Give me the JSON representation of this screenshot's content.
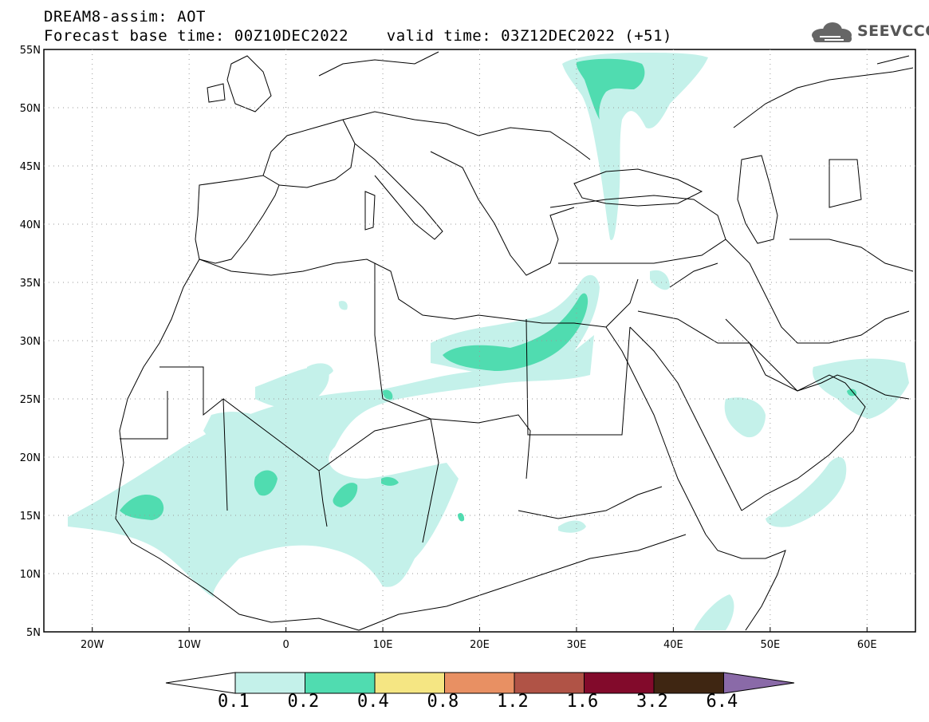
{
  "header": {
    "title_line1": "DREAM8-assim: AOT",
    "title_line2": "Forecast base time: 00Z10DEC2022    valid time: 03Z12DEC2022 (+51)",
    "logo_text": "SEEVCCC"
  },
  "map": {
    "lat_labels": [
      "55N",
      "50N",
      "45N",
      "40N",
      "35N",
      "30N",
      "25N",
      "20N",
      "15N",
      "10N",
      "5N"
    ],
    "lon_labels": [
      "20W",
      "10W",
      "0",
      "10E",
      "20E",
      "30E",
      "40E",
      "50E",
      "60E"
    ],
    "lat_range": [
      5,
      55
    ],
    "lon_range": [
      -25,
      65
    ],
    "colors": {
      "border": "#000000",
      "grid": "#9a9a9a"
    }
  },
  "colorbar": {
    "labels": [
      "0.1",
      "0.2",
      "0.4",
      "0.8",
      "1.2",
      "1.6",
      "3.2",
      "6.4"
    ],
    "colors": [
      "#c4f1ea",
      "#50dcb0",
      "#f5e683",
      "#e89063",
      "#b05346",
      "#820a2b",
      "#3f2612",
      "#8a6aa8"
    ]
  }
}
